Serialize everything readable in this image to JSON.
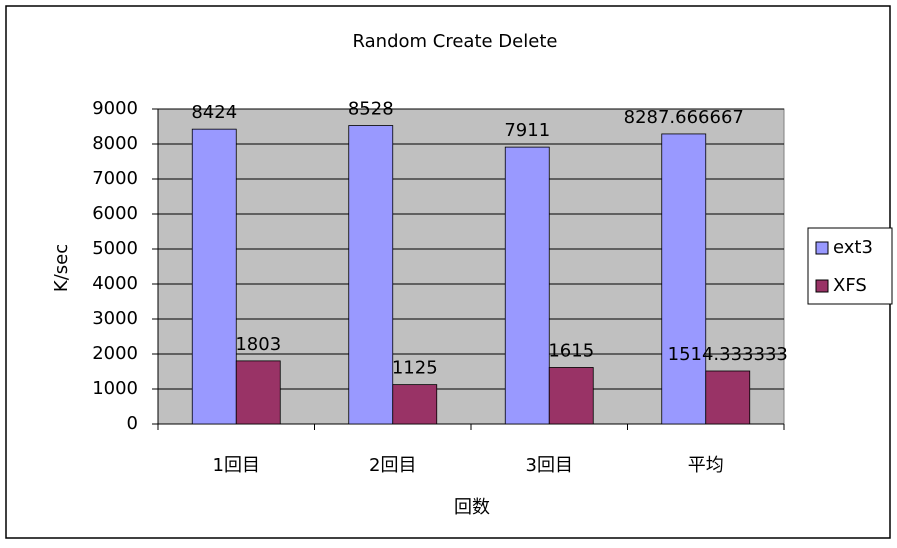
{
  "chart_data": {
    "type": "bar",
    "title": "Random Create Delete",
    "y_label": "K/sec",
    "x_label": "回数",
    "categories": [
      "1回目",
      "2回目",
      "3回目",
      "平均"
    ],
    "series": [
      {
        "name": "ext3",
        "color": "#9999ff",
        "values": [
          8424,
          8528,
          7911,
          8287.666667
        ]
      },
      {
        "name": "XFS",
        "color": "#993366",
        "values": [
          1803,
          1125,
          1615,
          1514.333333
        ]
      }
    ],
    "ylim": [
      0,
      9000
    ],
    "yticks": [
      0,
      1000,
      2000,
      3000,
      4000,
      5000,
      6000,
      7000,
      8000,
      9000
    ],
    "grid": true,
    "legend": "right"
  }
}
